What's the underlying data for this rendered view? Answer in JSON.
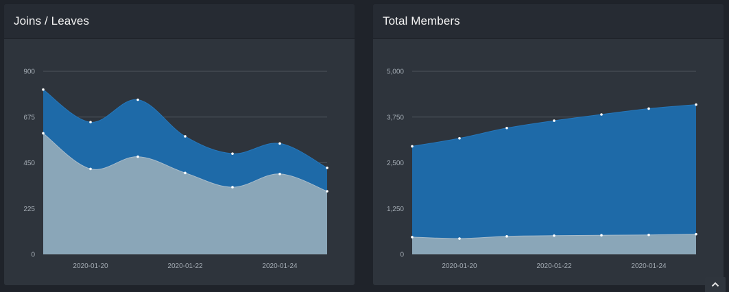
{
  "charts": {
    "joins": {
      "title": "Joins / Leaves"
    },
    "members": {
      "title": "Total Members"
    }
  },
  "colors": {
    "series_primary": "#1e6aa8",
    "series_primary_edge": "#2577bb",
    "series_secondary": "#8aa6b8",
    "series_secondary_edge": "#a8bccb",
    "gridline": "#4d545d",
    "tick_text": "#a3abb3",
    "marker": "#ffffff"
  },
  "icons": {
    "scroll_top": "chevron-up-icon"
  },
  "chart_data": [
    {
      "type": "area",
      "title": "Joins / Leaves",
      "x": [
        "2020-01-19",
        "2020-01-20",
        "2020-01-21",
        "2020-01-22",
        "2020-01-23",
        "2020-01-24",
        "2020-01-25"
      ],
      "x_tick_labels": [
        "2020-01-20",
        "2020-01-22",
        "2020-01-24"
      ],
      "y_ticks": [
        "0",
        "225",
        "450",
        "675",
        "900"
      ],
      "ylim": [
        0,
        900
      ],
      "grid": true,
      "series": [
        {
          "values": [
            810,
            650,
            760,
            580,
            495,
            545,
            425
          ]
        },
        {
          "values": [
            595,
            420,
            480,
            400,
            330,
            395,
            310
          ]
        }
      ]
    },
    {
      "type": "area",
      "title": "Total Members",
      "x": [
        "2020-01-19",
        "2020-01-20",
        "2020-01-21",
        "2020-01-22",
        "2020-01-23",
        "2020-01-24",
        "2020-01-25"
      ],
      "x_tick_labels": [
        "2020-01-20",
        "2020-01-22",
        "2020-01-24"
      ],
      "y_ticks": [
        "0",
        "1,250",
        "2,500",
        "3,750",
        "5,000"
      ],
      "ylim": [
        0,
        5000
      ],
      "grid": true,
      "series": [
        {
          "values": [
            2950,
            3170,
            3450,
            3650,
            3820,
            3980,
            4090
          ]
        },
        {
          "values": [
            470,
            430,
            490,
            510,
            520,
            530,
            550
          ]
        }
      ]
    }
  ]
}
